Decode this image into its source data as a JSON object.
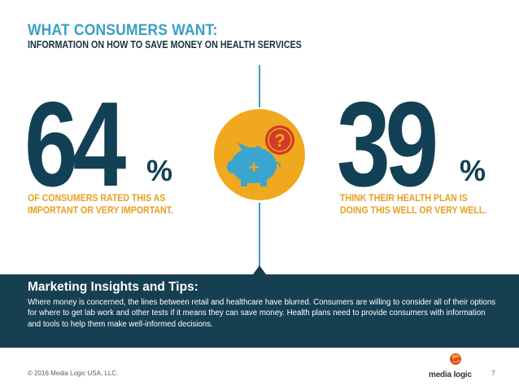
{
  "header": {
    "title": "WHAT CONSUMERS WANT:",
    "subtitle": "INFORMATION ON HOW TO SAVE MONEY ON HEALTH SERVICES"
  },
  "stats": [
    {
      "value": "64",
      "unit": "%",
      "description_line1": "OF CONSUMERS RATED THIS AS",
      "description_line2": "IMPORTANT OR VERY IMPORTANT."
    },
    {
      "value": "39",
      "unit": "%",
      "description_line1": "THINK THEIR HEALTH PLAN IS",
      "description_line2": "DOING THIS WELL OR VERY WELL."
    }
  ],
  "icon": {
    "name": "piggy-bank-question-icon",
    "dollar_sign": "$",
    "question_mark": "?",
    "plus_sign": "+"
  },
  "tips": {
    "title": "Marketing Insights and Tips:",
    "body": "Where money is concerned, the lines between retail and healthcare have blurred. Consumers are willing to consider all of their options for where to get lab work and other tests if it means they can save money. Health plans need to provide consumers with information and tools to help them make well-informed decisions."
  },
  "footer": {
    "copyright": "© 2016 Media Logic USA, LLC.",
    "logo_text": "media logic",
    "page_number": "7"
  },
  "colors": {
    "accent_blue": "#3a9fc4",
    "dark_navy": "#124055",
    "band": "#163f52",
    "orange": "#e8a020",
    "red": "#d23a2a",
    "circle_yellow": "#f0a81e"
  }
}
